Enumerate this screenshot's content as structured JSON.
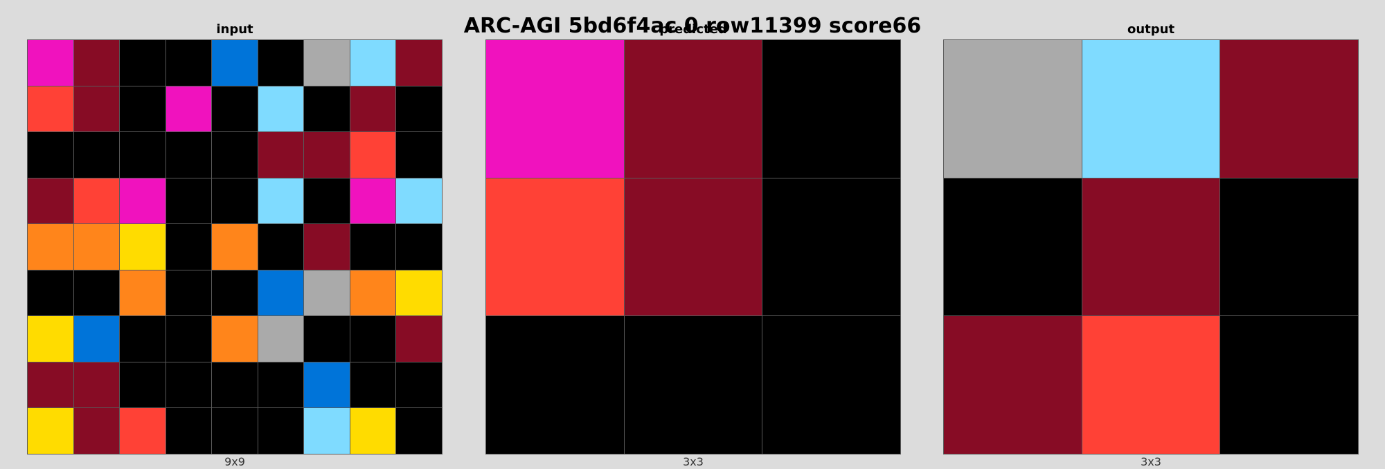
{
  "title": "ARC-AGI 5bd6f4ac 0 row11399 score66",
  "palette": {
    "0": "#000000",
    "1": "#0074D9",
    "2": "#FF4136",
    "3": "#2ECC40",
    "4": "#FFDC00",
    "5": "#AAAAAA",
    "6": "#F012BE",
    "7": "#FF851B",
    "8": "#7FDBFF",
    "9": "#870C25"
  },
  "panels": [
    {
      "title": "input",
      "dims": "9x9",
      "grid": [
        [
          6,
          9,
          0,
          0,
          1,
          0,
          5,
          8,
          9
        ],
        [
          2,
          9,
          0,
          6,
          0,
          8,
          0,
          9,
          0
        ],
        [
          0,
          0,
          0,
          0,
          0,
          9,
          9,
          2,
          0
        ],
        [
          9,
          2,
          6,
          0,
          0,
          8,
          0,
          6,
          8
        ],
        [
          7,
          7,
          4,
          0,
          7,
          0,
          9,
          0,
          0
        ],
        [
          0,
          0,
          7,
          0,
          0,
          1,
          5,
          7,
          4
        ],
        [
          4,
          1,
          0,
          0,
          7,
          5,
          0,
          0,
          9
        ],
        [
          9,
          9,
          0,
          0,
          0,
          0,
          1,
          0,
          0
        ],
        [
          4,
          9,
          2,
          0,
          0,
          0,
          8,
          4,
          0
        ]
      ]
    },
    {
      "title": "predicted",
      "dims": "3x3",
      "grid": [
        [
          6,
          9,
          0
        ],
        [
          2,
          9,
          0
        ],
        [
          0,
          0,
          0
        ]
      ]
    },
    {
      "title": "output",
      "dims": "3x3",
      "grid": [
        [
          5,
          8,
          9
        ],
        [
          0,
          9,
          0
        ],
        [
          9,
          2,
          0
        ]
      ]
    }
  ]
}
